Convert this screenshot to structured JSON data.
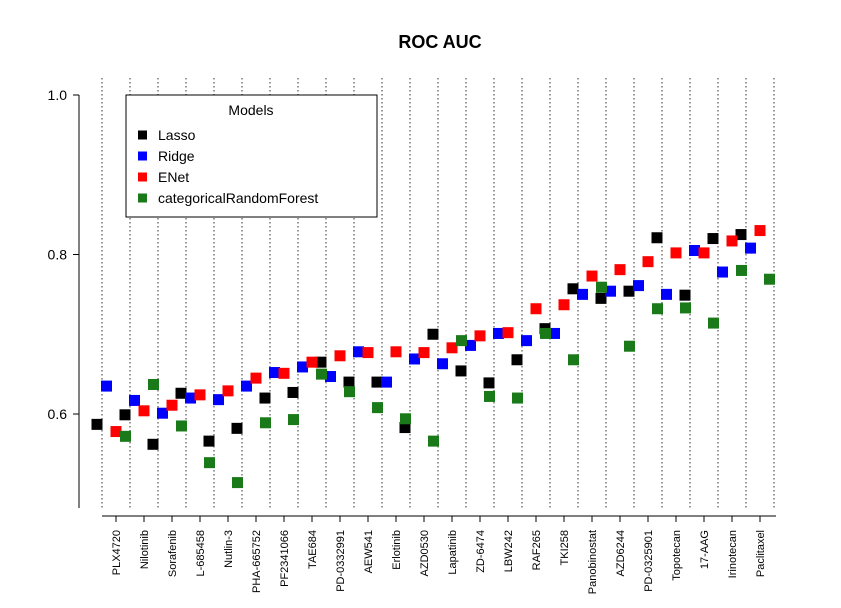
{
  "chart_data": {
    "type": "scatter",
    "title": "ROC AUC",
    "xlabel": "",
    "ylabel": "",
    "ylim": [
      0.475,
      1.0
    ],
    "yticks": [
      0.6,
      0.8,
      1.0
    ],
    "ytick_labels": [
      "0.6",
      "0.8",
      "1.0"
    ],
    "grid": "vertical dotted separators between categories",
    "legend": {
      "title": "Models",
      "placement": "top-left"
    },
    "categories": [
      "PLX4720",
      "Nilotinib",
      "Sorafenib",
      "L-685458",
      "Nutlin-3",
      "PHA-665752",
      "PF2341066",
      "TAE684",
      "PD-0332991",
      "AEW541",
      "Erlotinib",
      "AZD0530",
      "Lapatinib",
      "ZD-6474",
      "LBW242",
      "RAF265",
      "TKI258",
      "Panobinostat",
      "AZD6244",
      "PD-0325901",
      "Topotecan",
      "17-AAG",
      "Irinotecan",
      "Paclitaxel"
    ],
    "series": [
      {
        "name": "Lasso",
        "color": "#000000",
        "values": [
          0.587,
          0.599,
          0.562,
          0.626,
          0.566,
          0.582,
          0.62,
          0.627,
          0.665,
          0.64,
          0.64,
          0.583,
          0.7,
          0.654,
          0.639,
          0.668,
          0.707,
          0.757,
          0.745,
          0.754,
          0.821,
          0.749,
          0.82,
          0.825
        ]
      },
      {
        "name": "Ridge",
        "color": "#0000ff",
        "values": [
          0.635,
          0.617,
          0.601,
          0.62,
          0.618,
          0.635,
          0.652,
          0.659,
          0.647,
          0.678,
          0.64,
          0.669,
          0.663,
          0.686,
          0.701,
          0.692,
          0.701,
          0.75,
          0.754,
          0.761,
          0.75,
          0.805,
          0.778,
          0.808
        ]
      },
      {
        "name": "ENet",
        "color": "#ff0000",
        "values": [
          0.578,
          0.604,
          0.611,
          0.624,
          0.629,
          0.645,
          0.651,
          0.665,
          0.673,
          0.677,
          0.678,
          0.677,
          0.683,
          0.698,
          0.702,
          0.732,
          0.737,
          0.773,
          0.781,
          0.791,
          0.802,
          0.802,
          0.817,
          0.83
        ]
      },
      {
        "name": "categoricalRandomForest",
        "color": "#1a7a1a",
        "values": [
          0.572,
          0.637,
          0.585,
          0.539,
          0.514,
          0.589,
          0.593,
          0.65,
          0.628,
          0.608,
          0.594,
          0.566,
          0.692,
          0.622,
          0.62,
          0.701,
          0.668,
          0.759,
          0.685,
          0.732,
          0.733,
          0.714,
          0.78,
          0.769
        ]
      }
    ]
  }
}
